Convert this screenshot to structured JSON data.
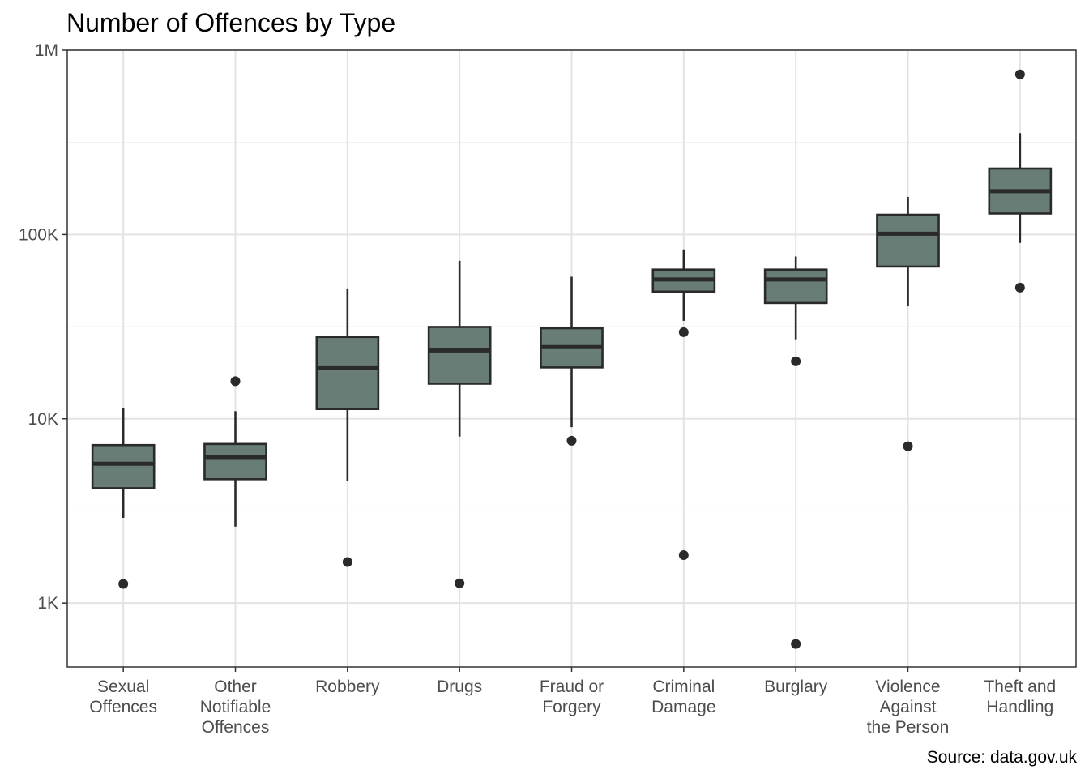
{
  "chart_data": {
    "type": "boxplot",
    "title": "Number of Offences by Type",
    "caption": "Source: data.gov.uk",
    "xlabel": "",
    "ylabel": "",
    "y_scale": "log10",
    "ylim": [
      450,
      1000000
    ],
    "y_ticks": [
      {
        "value": 1000,
        "label": "1K"
      },
      {
        "value": 10000,
        "label": "10K"
      },
      {
        "value": 100000,
        "label": "100K"
      },
      {
        "value": 1000000,
        "label": "1M"
      }
    ],
    "grid": true,
    "box_fill": "#687d75",
    "box_stroke": "#2a2a2a",
    "categories": [
      {
        "label": [
          "Sexual",
          "Offences"
        ],
        "whisker_low": 2900,
        "q1": 4200,
        "median": 5700,
        "q3": 7200,
        "whisker_high": 11500,
        "outliers": [
          1270
        ]
      },
      {
        "label": [
          "Other",
          "Notifiable",
          "Offences"
        ],
        "whisker_low": 2600,
        "q1": 4700,
        "median": 6200,
        "q3": 7300,
        "whisker_high": 11000,
        "outliers": [
          16000
        ]
      },
      {
        "label": [
          "Robbery"
        ],
        "whisker_low": 4600,
        "q1": 11300,
        "median": 18800,
        "q3": 27800,
        "whisker_high": 51000,
        "outliers": [
          1670
        ]
      },
      {
        "label": [
          "Drugs"
        ],
        "whisker_low": 8000,
        "q1": 15500,
        "median": 23500,
        "q3": 31500,
        "whisker_high": 72000,
        "outliers": [
          1280
        ]
      },
      {
        "label": [
          "Fraud or",
          "Forgery"
        ],
        "whisker_low": 9000,
        "q1": 19000,
        "median": 24500,
        "q3": 31000,
        "whisker_high": 59000,
        "outliers": [
          7600
        ]
      },
      {
        "label": [
          "Criminal",
          "Damage"
        ],
        "whisker_low": 34000,
        "q1": 49000,
        "median": 57000,
        "q3": 64500,
        "whisker_high": 83000,
        "outliers": [
          29500,
          1820
        ]
      },
      {
        "label": [
          "Burglary"
        ],
        "whisker_low": 27000,
        "q1": 42500,
        "median": 57000,
        "q3": 64500,
        "whisker_high": 76000,
        "outliers": [
          20500,
          600
        ]
      },
      {
        "label": [
          "Violence",
          "Against",
          "the Person"
        ],
        "whisker_low": 41000,
        "q1": 67000,
        "median": 101000,
        "q3": 128000,
        "whisker_high": 160000,
        "outliers": [
          7100
        ]
      },
      {
        "label": [
          "Theft and",
          "Handling"
        ],
        "whisker_low": 90000,
        "q1": 130000,
        "median": 172000,
        "q3": 228000,
        "whisker_high": 355000,
        "outliers": [
          740000,
          51500
        ]
      }
    ]
  }
}
